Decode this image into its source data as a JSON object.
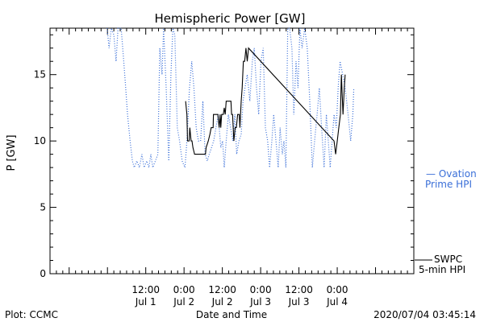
{
  "chart_data": {
    "type": "line",
    "title": "Hemispheric Power [GW]",
    "ylabel": "P [GW]",
    "xlabel": "Date and Time",
    "ylim": [
      0,
      18.5
    ],
    "yticks": [
      0,
      5,
      10,
      15
    ],
    "xlim_hours": [
      -18,
      96
    ],
    "xticks": [
      {
        "t": 12,
        "time": "12:00",
        "date": "Jul 1"
      },
      {
        "t": 24,
        "time": "0:00",
        "date": "Jul 2"
      },
      {
        "t": 36,
        "time": "12:00",
        "date": "Jul 2"
      },
      {
        "t": 48,
        "time": "0:00",
        "date": "Jul 3"
      },
      {
        "t": 60,
        "time": "12:00",
        "date": "Jul 3"
      },
      {
        "t": 72,
        "time": "0:00",
        "date": "Jul 4"
      }
    ],
    "series": [
      {
        "name": "Ovation Prime HPI",
        "style": "dotted",
        "color": "#3a6fd8",
        "points": [
          [
            -0.1,
            18.5
          ],
          [
            0.5,
            17
          ],
          [
            1.2,
            18.5
          ],
          [
            2,
            18
          ],
          [
            2.7,
            16
          ],
          [
            3.3,
            18.5
          ],
          [
            4.3,
            18.5
          ],
          [
            5.1,
            16
          ],
          [
            5.7,
            14
          ],
          [
            6.3,
            12
          ],
          [
            7.1,
            10
          ],
          [
            7.8,
            8.5
          ],
          [
            8.4,
            8
          ],
          [
            9.2,
            8.5
          ],
          [
            10,
            8
          ],
          [
            10.8,
            9
          ],
          [
            11.5,
            8
          ],
          [
            12.3,
            8.5
          ],
          [
            13,
            8
          ],
          [
            13.6,
            9
          ],
          [
            14.2,
            8
          ],
          [
            15,
            8.5
          ],
          [
            15.8,
            9
          ],
          [
            16.4,
            17
          ],
          [
            17.1,
            15
          ],
          [
            17.6,
            18.5
          ],
          [
            18.4,
            14
          ],
          [
            19.2,
            8.5
          ],
          [
            19.9,
            15
          ],
          [
            20.5,
            18.5
          ],
          [
            21.1,
            18
          ],
          [
            21.9,
            11
          ],
          [
            22.6,
            10
          ],
          [
            23.4,
            8.5
          ],
          [
            24.3,
            8
          ],
          [
            24.9,
            10
          ],
          [
            25.7,
            14
          ],
          [
            26.4,
            16
          ],
          [
            27.1,
            14
          ],
          [
            27.8,
            11
          ],
          [
            28.5,
            10
          ],
          [
            29.2,
            10
          ],
          [
            29.9,
            13
          ],
          [
            30.6,
            9
          ],
          [
            31.3,
            8.5
          ],
          [
            31.9,
            9
          ],
          [
            32.6,
            9.5
          ],
          [
            33.3,
            10
          ],
          [
            34,
            11
          ],
          [
            34.7,
            12
          ],
          [
            35.5,
            9.5
          ],
          [
            36.1,
            10
          ],
          [
            36.6,
            8
          ],
          [
            37.2,
            10
          ],
          [
            37.9,
            12
          ],
          [
            38.6,
            11
          ],
          [
            39.3,
            10
          ],
          [
            39.9,
            12
          ],
          [
            40.5,
            9
          ],
          [
            41.2,
            10
          ],
          [
            41.9,
            10.5
          ],
          [
            42.5,
            13
          ],
          [
            43.1,
            14
          ],
          [
            43.8,
            15
          ],
          [
            44.6,
            13
          ],
          [
            45.4,
            16
          ],
          [
            46,
            17
          ],
          [
            46.7,
            14
          ],
          [
            47.4,
            12
          ],
          [
            48.1,
            16
          ],
          [
            48.8,
            17
          ],
          [
            49.5,
            11
          ],
          [
            50.2,
            10
          ],
          [
            50.8,
            8
          ],
          [
            51.5,
            10
          ],
          [
            52.1,
            12
          ],
          [
            52.8,
            10
          ],
          [
            53.5,
            8
          ],
          [
            54.1,
            11
          ],
          [
            54.8,
            9
          ],
          [
            55.3,
            10
          ],
          [
            55.9,
            8
          ],
          [
            56.5,
            18.5
          ],
          [
            57.1,
            18.5
          ],
          [
            57.8,
            17
          ],
          [
            58.4,
            12
          ],
          [
            59.1,
            16
          ],
          [
            59.7,
            14
          ],
          [
            60.3,
            18.5
          ],
          [
            61,
            17
          ],
          [
            61.8,
            18.5
          ],
          [
            62.6,
            17
          ],
          [
            63.4,
            13
          ],
          [
            64.2,
            8
          ],
          [
            64.9,
            10
          ],
          [
            65.7,
            12
          ],
          [
            66.4,
            14
          ],
          [
            67.1,
            11
          ],
          [
            67.9,
            8
          ],
          [
            68.6,
            12
          ],
          [
            69.2,
            10
          ],
          [
            69.8,
            8
          ],
          [
            70.4,
            10
          ],
          [
            71,
            12
          ],
          [
            71.7,
            11
          ],
          [
            72.3,
            14
          ],
          [
            72.9,
            16
          ],
          [
            73.7,
            15
          ],
          [
            74.5,
            14
          ],
          [
            75.4,
            12
          ],
          [
            76.2,
            10
          ],
          [
            76.9,
            12
          ],
          [
            77.2,
            14
          ]
        ]
      },
      {
        "name": "SWPC 5-min HPI",
        "style": "solid",
        "color": "#000000",
        "points": [
          [
            24.5,
            13
          ],
          [
            24.9,
            12
          ],
          [
            25.1,
            10
          ],
          [
            25.6,
            10
          ],
          [
            25.8,
            11
          ],
          [
            26.2,
            10
          ],
          [
            26.5,
            10
          ],
          [
            26.8,
            9.5
          ],
          [
            27.3,
            9
          ],
          [
            30.7,
            9
          ],
          [
            30.9,
            9.5
          ],
          [
            31.6,
            10
          ],
          [
            32.1,
            10.5
          ],
          [
            32.5,
            11
          ],
          [
            33.1,
            11
          ],
          [
            33.2,
            12
          ],
          [
            33.9,
            12
          ],
          [
            34.2,
            12
          ],
          [
            34.6,
            12
          ],
          [
            35,
            11
          ],
          [
            35.3,
            12
          ],
          [
            35.5,
            11
          ],
          [
            35.8,
            12
          ],
          [
            36,
            12
          ],
          [
            36.3,
            12
          ],
          [
            36.6,
            12.5
          ],
          [
            36.9,
            12
          ],
          [
            37.2,
            13
          ],
          [
            37.8,
            13
          ],
          [
            38.1,
            13
          ],
          [
            38.7,
            13
          ],
          [
            38.9,
            12
          ],
          [
            39.2,
            12
          ],
          [
            39.4,
            11
          ],
          [
            39.6,
            10
          ],
          [
            40,
            11
          ],
          [
            40.4,
            11
          ],
          [
            40.8,
            12
          ],
          [
            41.1,
            12
          ],
          [
            41.3,
            12
          ],
          [
            41.5,
            11
          ],
          [
            41.9,
            13
          ],
          [
            42.2,
            14
          ],
          [
            42.6,
            16
          ],
          [
            43,
            16
          ],
          [
            43.4,
            17
          ],
          [
            43.8,
            16
          ],
          [
            44.2,
            17
          ],
          [
            71,
            10
          ],
          [
            71.5,
            9
          ],
          [
            72,
            10
          ],
          [
            72.5,
            11
          ],
          [
            73,
            12
          ],
          [
            73.3,
            15
          ],
          [
            73.8,
            12
          ],
          [
            74.2,
            14
          ],
          [
            74.5,
            15
          ]
        ]
      }
    ],
    "legend": {
      "placement": "right",
      "ovation_line1": "— Ovation",
      "ovation_line2": "Prime HPI",
      "swpc_line1": "SWPC",
      "swpc_line2": "5-min HPI"
    },
    "footer": {
      "left": "Plot: CCMC",
      "right": "2020/07/04 03:45:14"
    }
  }
}
